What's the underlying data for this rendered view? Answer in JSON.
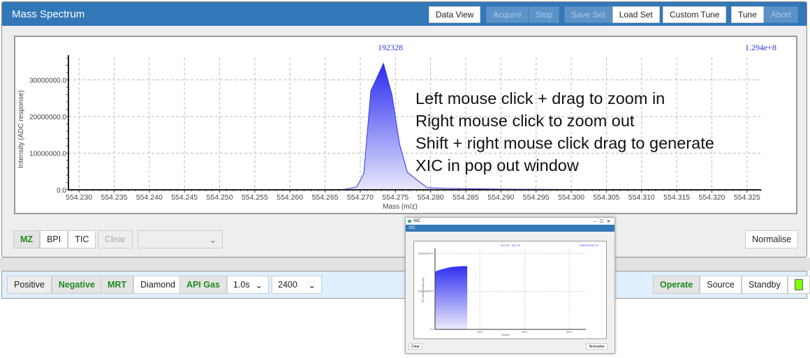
{
  "header": {
    "title": "Mass Spectrum",
    "buttons": [
      {
        "label": "Data View",
        "enabled": true
      },
      {
        "label": "Acquire",
        "enabled": false
      },
      {
        "label": "Stop",
        "enabled": false
      },
      {
        "label": "Save Set",
        "enabled": false
      },
      {
        "label": "Load Set",
        "enabled": true
      },
      {
        "label": "Custom Tune",
        "enabled": true
      },
      {
        "label": "Tune",
        "enabled": true
      },
      {
        "label": "Abort",
        "enabled": false
      }
    ]
  },
  "instructions": [
    "Left mouse click + drag to zoom in",
    "Right mouse click to zoom out",
    "Shift + right mouse click drag to generate",
    "XIC in pop out window"
  ],
  "chart_data": {
    "type": "area",
    "peak_label": "192328",
    "max_label": "1.294e+8",
    "xlabel": "Mass (m/z)",
    "ylabel": "Intensity (ADC response)",
    "xlim": [
      554.2285,
      554.327
    ],
    "ylim": [
      0,
      36000000
    ],
    "grid": true,
    "color": "#3333ee",
    "xticks": [
      "554.230",
      "554.235",
      "554.240",
      "554.245",
      "554.250",
      "554.255",
      "554.260",
      "554.265",
      "554.270",
      "554.275",
      "554.280",
      "554.285",
      "554.290",
      "554.295",
      "554.300",
      "554.305",
      "554.310",
      "554.315",
      "554.320",
      "554.325"
    ],
    "yticks": [
      "0.0",
      "10000000.0",
      "20000000.0",
      "30000000.0"
    ],
    "x": [
      554.2285,
      554.2665,
      554.268,
      554.2695,
      554.2705,
      554.2715,
      554.2733,
      554.2745,
      554.2756,
      554.2767,
      554.278,
      554.2795,
      554.282,
      554.29,
      554.3,
      554.31,
      554.327
    ],
    "y": [
      0,
      0,
      200000,
      800000,
      4400000,
      27000000,
      34500000,
      26000000,
      12400000,
      4800000,
      2800000,
      600000,
      400000,
      200000,
      100000,
      0,
      0
    ]
  },
  "toolbar": {
    "modes": [
      {
        "label": "MZ",
        "active": true
      },
      {
        "label": "BPI",
        "active": false
      },
      {
        "label": "TIC",
        "active": false
      }
    ],
    "clear": "Clear",
    "select_value": "",
    "normalise": "Normalise"
  },
  "bottom": {
    "polarity": [
      {
        "label": "Positive",
        "active": false
      },
      {
        "label": "Negative",
        "active": true
      }
    ],
    "source": [
      {
        "label": "MRT",
        "active": true
      },
      {
        "label": "Diamond",
        "active": false
      }
    ],
    "gas": {
      "label": "API Gas",
      "active": true
    },
    "time_select": "1.0s",
    "value_select": "2400",
    "state": [
      {
        "label": "Operate",
        "active": true
      },
      {
        "label": "Source",
        "active": false
      },
      {
        "label": "Standby",
        "active": false
      }
    ],
    "status_color": "#80ff00"
  },
  "popup": {
    "window_title": "XIC",
    "header": "XIC",
    "range_label": "554.28 - 554.28",
    "max_label": "1680000000.00",
    "ylabel": "TIC (ADC response)",
    "xlabel": "Scans",
    "yticks": [
      "2000000000.0",
      "1000000000.0",
      "0.0"
    ],
    "xticks": [
      "100.0",
      "200.0",
      "300.0"
    ],
    "clear": "Clear",
    "normalise": "Normalise",
    "chart_data": {
      "type": "area",
      "xlim": [
        0,
        337
      ],
      "ylim": [
        0,
        2100000000
      ],
      "x": [
        0,
        10,
        20,
        30,
        40,
        50,
        60,
        72
      ],
      "y": [
        1530000000,
        1570000000,
        1600000000,
        1630000000,
        1650000000,
        1660000000,
        1670000000,
        1670000000
      ]
    }
  }
}
